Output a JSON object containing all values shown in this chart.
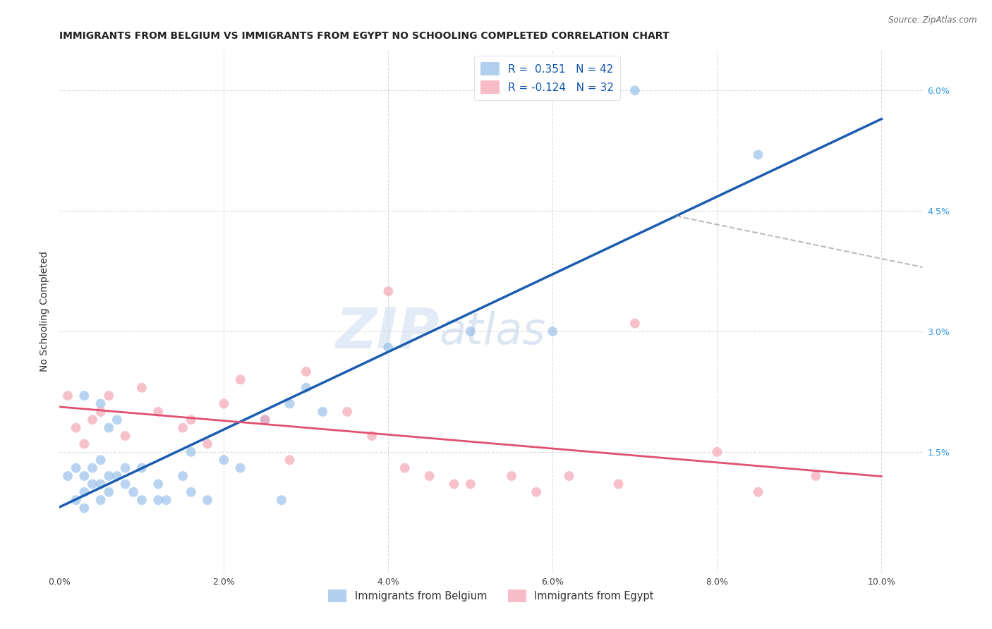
{
  "title": "IMMIGRANTS FROM BELGIUM VS IMMIGRANTS FROM EGYPT NO SCHOOLING COMPLETED CORRELATION CHART",
  "source": "Source: ZipAtlas.com",
  "ylabel": "No Schooling Completed",
  "xlim": [
    0.0,
    0.105
  ],
  "ylim": [
    0.0,
    0.065
  ],
  "xtick_labels": [
    "0.0%",
    "2.0%",
    "4.0%",
    "6.0%",
    "8.0%",
    "10.0%"
  ],
  "xtick_values": [
    0.0,
    0.02,
    0.04,
    0.06,
    0.08,
    0.1
  ],
  "ytick_labels": [
    "1.5%",
    "3.0%",
    "4.5%",
    "6.0%"
  ],
  "ytick_values": [
    0.015,
    0.03,
    0.045,
    0.06
  ],
  "legend_r1": "R =  0.351   N = 42",
  "legend_r2": "R = -0.124   N = 32",
  "blue_color": "#92BDE8",
  "pink_color": "#F4A0B0",
  "blue_line_color": "#1A5CB0",
  "pink_line_color": "#E05070",
  "belgium_x": [
    0.001,
    0.002,
    0.002,
    0.003,
    0.003,
    0.003,
    0.003,
    0.004,
    0.004,
    0.005,
    0.005,
    0.005,
    0.005,
    0.006,
    0.006,
    0.006,
    0.007,
    0.007,
    0.008,
    0.008,
    0.009,
    0.01,
    0.01,
    0.012,
    0.012,
    0.013,
    0.015,
    0.016,
    0.016,
    0.018,
    0.02,
    0.022,
    0.025,
    0.028,
    0.03,
    0.032,
    0.04,
    0.05,
    0.06,
    0.027,
    0.07,
    0.085
  ],
  "belgium_y": [
    0.012,
    0.009,
    0.013,
    0.008,
    0.01,
    0.012,
    0.022,
    0.011,
    0.013,
    0.009,
    0.011,
    0.014,
    0.021,
    0.01,
    0.012,
    0.018,
    0.012,
    0.019,
    0.011,
    0.013,
    0.01,
    0.009,
    0.013,
    0.009,
    0.011,
    0.009,
    0.012,
    0.01,
    0.015,
    0.009,
    0.014,
    0.013,
    0.019,
    0.021,
    0.023,
    0.02,
    0.028,
    0.03,
    0.03,
    0.009,
    0.06,
    0.052
  ],
  "egypt_x": [
    0.001,
    0.002,
    0.003,
    0.004,
    0.005,
    0.006,
    0.008,
    0.01,
    0.012,
    0.015,
    0.016,
    0.018,
    0.02,
    0.022,
    0.025,
    0.028,
    0.03,
    0.035,
    0.038,
    0.04,
    0.042,
    0.045,
    0.048,
    0.05,
    0.055,
    0.058,
    0.062,
    0.068,
    0.07,
    0.08,
    0.085,
    0.092
  ],
  "egypt_y": [
    0.022,
    0.018,
    0.016,
    0.019,
    0.02,
    0.022,
    0.017,
    0.023,
    0.02,
    0.018,
    0.019,
    0.016,
    0.021,
    0.024,
    0.019,
    0.014,
    0.025,
    0.02,
    0.017,
    0.035,
    0.013,
    0.012,
    0.011,
    0.011,
    0.012,
    0.01,
    0.012,
    0.011,
    0.031,
    0.015,
    0.01,
    0.012
  ],
  "marker_size": 100,
  "background_color": "#FFFFFF",
  "grid_color": "#CCCCCC"
}
